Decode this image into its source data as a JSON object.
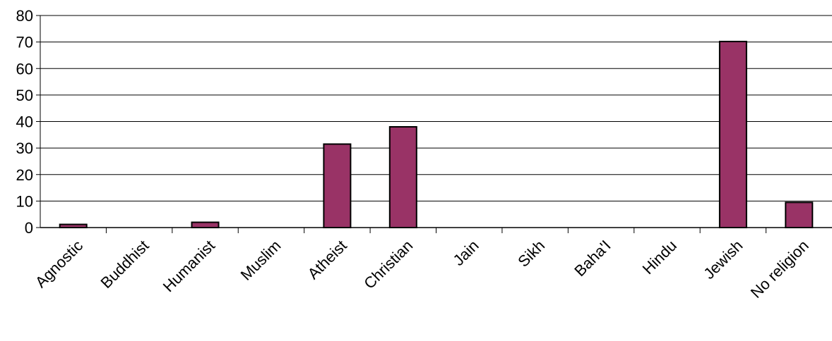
{
  "chart_data": {
    "type": "bar",
    "title": "",
    "xlabel": "",
    "ylabel": "",
    "categories": [
      "Agnostic",
      "Buddhist",
      "Humanist",
      "Muslim",
      "Atheist",
      "Christian",
      "Jain",
      "Sikh",
      "Baha'I",
      "Hindu",
      "Jewish",
      "No religion"
    ],
    "values": [
      1.2,
      0,
      2,
      0,
      31.5,
      38,
      0,
      0,
      0,
      0,
      70.2,
      9.5
    ],
    "ylim": [
      0,
      80
    ],
    "yticks": [
      "0",
      "10",
      "20",
      "30",
      "40",
      "50",
      "60",
      "70",
      "80"
    ],
    "grid": true,
    "legend": "none",
    "bar_color": "#993366"
  }
}
